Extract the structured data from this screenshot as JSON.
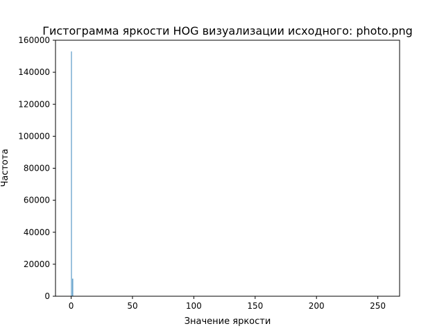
{
  "chart_data": {
    "type": "bar",
    "title": "Гистограмма яркости HOG визуализации исходного: photo.png",
    "xlabel": "Значение яркости",
    "ylabel": "Частота",
    "xlim": [
      -12.75,
      267.75
    ],
    "ylim": [
      0,
      160000
    ],
    "xticks": [
      0,
      50,
      100,
      150,
      200,
      250
    ],
    "yticks": [
      0,
      20000,
      40000,
      60000,
      80000,
      100000,
      120000,
      140000,
      160000
    ],
    "grid": false,
    "legend": "none",
    "bar_color": "#1f77b4",
    "bins": [
      {
        "x0": 0.0,
        "x1": 0.5,
        "value": 153000
      },
      {
        "x0": 1.0,
        "x1": 1.6,
        "value": 11000
      }
    ]
  }
}
